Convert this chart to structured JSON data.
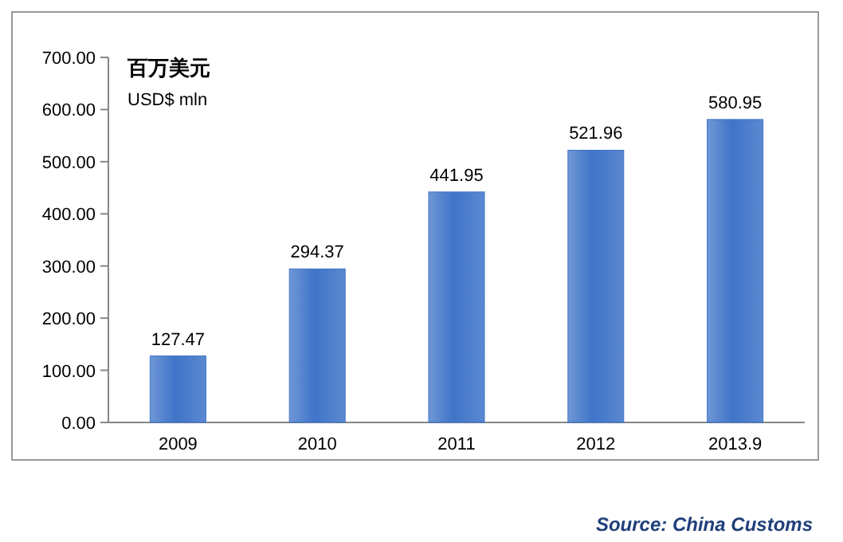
{
  "chart_data": {
    "type": "bar",
    "title": "百万美元",
    "subtitle": "USD$ mln",
    "categories": [
      "2009",
      "2010",
      "2011",
      "2012",
      "2013.9"
    ],
    "values": [
      127.47,
      294.37,
      441.95,
      521.96,
      580.95
    ],
    "color": "#3f74c8",
    "ylim": [
      0,
      700
    ],
    "yticks": [
      {
        "value": 0,
        "label": "0.00"
      },
      {
        "value": 100,
        "label": "100.00"
      },
      {
        "value": 200,
        "label": "200.00"
      },
      {
        "value": 300,
        "label": "300.00"
      },
      {
        "value": 400,
        "label": "400.00"
      },
      {
        "value": 500,
        "label": "500.00"
      },
      {
        "value": 600,
        "label": "600.00"
      },
      {
        "value": 700,
        "label": "700.00"
      }
    ],
    "data_labels": true,
    "grid": false,
    "annotations": [
      "Source: China Customs"
    ]
  }
}
